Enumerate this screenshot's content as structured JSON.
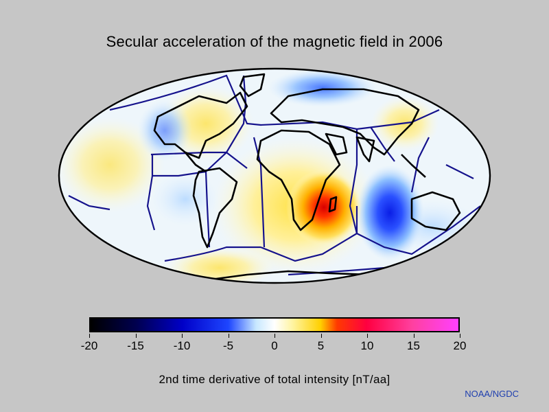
{
  "title": "Secular acceleration of the magnetic field in 2006",
  "colorbar": {
    "min": -20,
    "max": 20,
    "tick_labels": [
      "-20",
      "-15",
      "-10",
      "-5",
      "0",
      "5",
      "10",
      "15",
      "20"
    ],
    "label": "2nd time derivative of total intensity [nT/aa]",
    "colors": {
      "neg20": "#000000",
      "neg15": "#000050",
      "neg10": "#0000c8",
      "neg5": "#1e46ff",
      "neg2": "#c8e8ff",
      "zero": "#ffffff",
      "pos2": "#fff4a0",
      "pos5": "#ffd000",
      "pos7": "#ff3a00",
      "pos10": "#ff0040",
      "pos15": "#ff40a0",
      "pos20": "#ff40ff"
    }
  },
  "credit": "NOAA/NGDC",
  "map": {
    "projection": "Mollweide",
    "ocean_color": "#eef6fb",
    "coastline_color": "#000000",
    "plate_boundary_color": "#15128c"
  }
}
